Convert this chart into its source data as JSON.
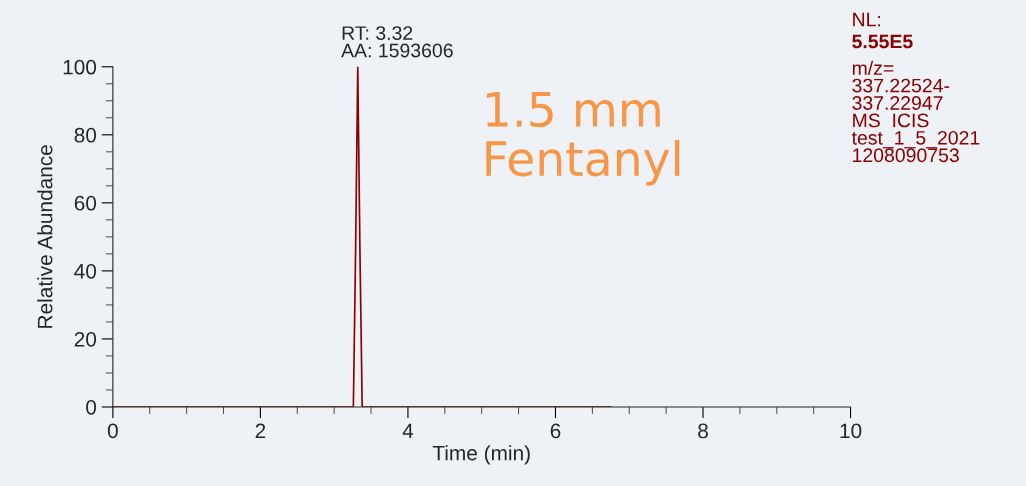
{
  "chart_data": {
    "type": "line",
    "xlabel": "Time (min)",
    "ylabel": "Relative Abundance",
    "xlim": [
      0,
      10
    ],
    "xticks": [
      0,
      2,
      4,
      6,
      8,
      10
    ],
    "ylim": [
      0,
      100
    ],
    "yticks": [
      0,
      20,
      40,
      60,
      80,
      100
    ],
    "grid": false,
    "legend": false,
    "marker": "none",
    "line_style": "solid",
    "series": [
      {
        "color": "#8b0000",
        "x": [
          0,
          3.26,
          3.29,
          3.32,
          3.35,
          3.38,
          6.75
        ],
        "values": [
          0,
          0,
          45,
          100,
          45,
          0,
          0
        ]
      }
    ],
    "annotations": [
      {
        "text": "RT: 3.32\nAA: 1593606",
        "x": 3.32,
        "y": 100
      },
      "1.5 mm\nFentanyl",
      "NL:",
      "5.55E5",
      "m/z=\n337.22524-\n337.22947\nMS  ICIS\ntest_1_5_2021\n1208090753"
    ]
  }
}
